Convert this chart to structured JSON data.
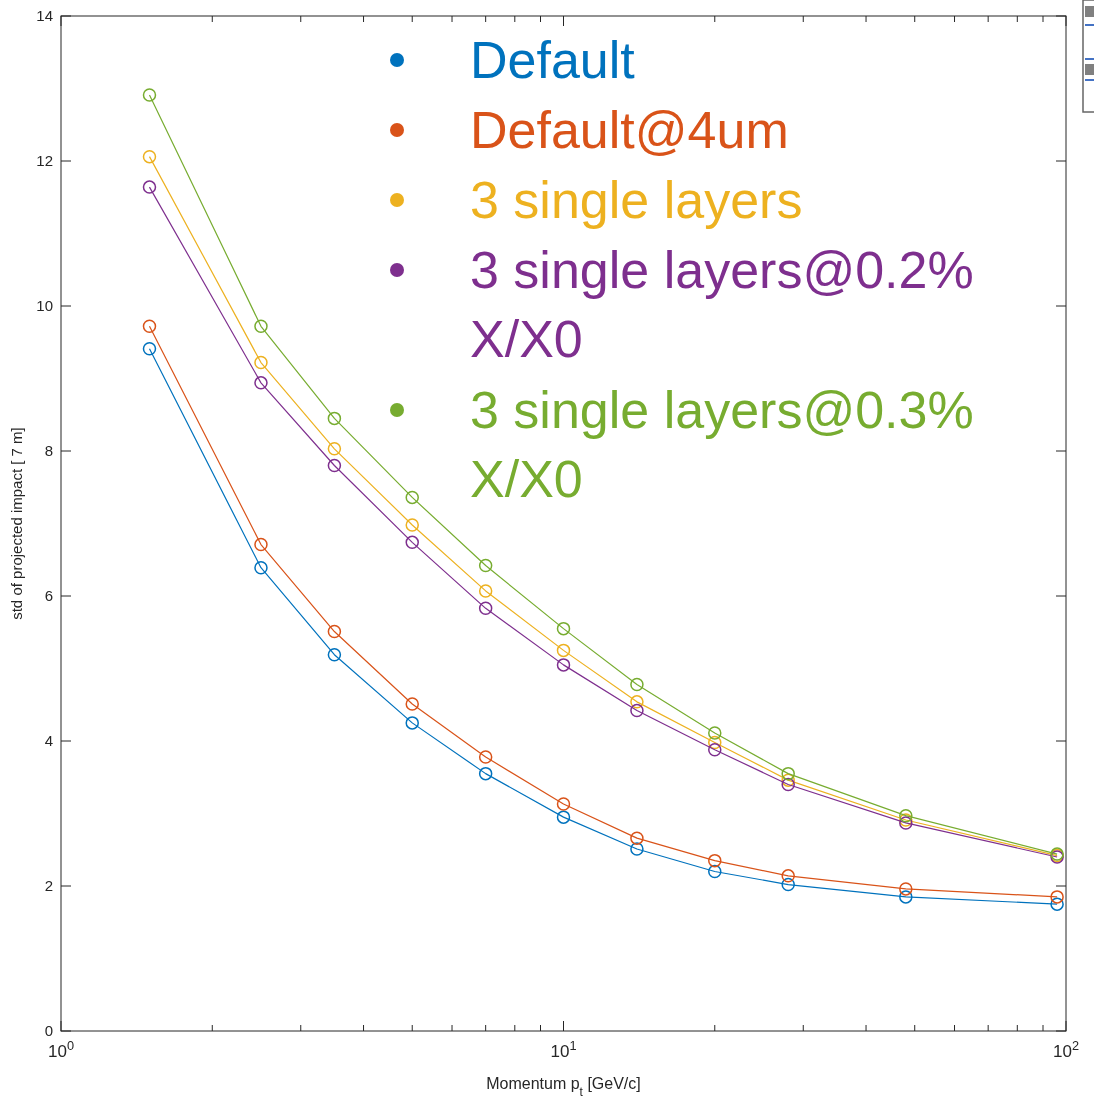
{
  "chart_data": {
    "type": "line",
    "xlabel": "Momentum p$_{t}$ [GeV/c]",
    "ylabel": "std of projected impact [ 7 m]",
    "log": "x",
    "xlim": [
      1,
      100
    ],
    "ylim": [
      0,
      14
    ],
    "xticks": [
      {
        "value": 1,
        "label": "10$^{0}$"
      },
      {
        "value": 2,
        "label": null
      },
      {
        "value": 3,
        "label": null
      },
      {
        "value": 4,
        "label": null
      },
      {
        "value": 5,
        "label": null
      },
      {
        "value": 6,
        "label": null
      },
      {
        "value": 7,
        "label": null
      },
      {
        "value": 8,
        "label": null
      },
      {
        "value": 9,
        "label": null
      },
      {
        "value": 10,
        "label": "10$^{1}$"
      },
      {
        "value": 20,
        "label": null
      },
      {
        "value": 30,
        "label": null
      },
      {
        "value": 40,
        "label": null
      },
      {
        "value": 50,
        "label": null
      },
      {
        "value": 60,
        "label": null
      },
      {
        "value": 70,
        "label": null
      },
      {
        "value": 80,
        "label": null
      },
      {
        "value": 90,
        "label": null
      },
      {
        "value": 100,
        "label": "10$^{2}$"
      }
    ],
    "yticks": [
      0,
      2,
      4,
      6,
      8,
      10,
      12,
      14
    ],
    "x": [
      1.5,
      2.5,
      3.5,
      5,
      7,
      10,
      14,
      20,
      28,
      48,
      96
    ],
    "marker": "circle",
    "grid": false,
    "legend": "top right",
    "series": [
      {
        "name": "Default",
        "color": "#0072bd",
        "values": [
          9.41,
          6.39,
          5.19,
          4.25,
          3.55,
          2.95,
          2.51,
          2.2,
          2.02,
          1.85,
          1.75
        ]
      },
      {
        "name": "Default@4um",
        "color": "#d95319",
        "values": [
          9.72,
          6.71,
          5.51,
          4.51,
          3.78,
          3.13,
          2.66,
          2.35,
          2.14,
          1.96,
          1.85
        ]
      },
      {
        "name": "3 single layers",
        "color": "#edb120",
        "values": [
          12.06,
          9.22,
          8.03,
          6.98,
          6.07,
          5.25,
          4.54,
          3.98,
          3.46,
          2.91,
          2.42
        ]
      },
      {
        "name": "3 single layers@0.2% X/X0",
        "color": "#7e2f8e",
        "values": [
          11.64,
          8.94,
          7.8,
          6.74,
          5.83,
          5.05,
          4.42,
          3.88,
          3.4,
          2.87,
          2.4
        ]
      },
      {
        "name": "3 single layers@0.3% X/X0",
        "color": "#77ac30",
        "values": [
          12.91,
          9.72,
          8.45,
          7.36,
          6.42,
          5.55,
          4.78,
          4.11,
          3.55,
          2.97,
          2.44
        ]
      }
    ]
  }
}
